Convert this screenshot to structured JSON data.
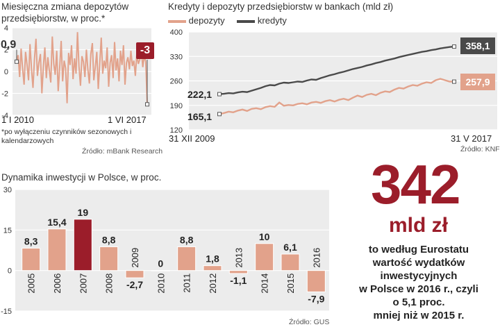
{
  "colors": {
    "accent": "#9b1d2a",
    "salmon": "#e2a28b",
    "salmon_light": "#ecc3b0",
    "dark": "#4a4a4a",
    "panel_bg": "#ececec"
  },
  "panel1": {
    "title": "Miesięczna zmiana depozytów przedsiębiorstw, w proc.*",
    "footnote": "*po wyłączeniu czynników sezonowych i kalendarzowych",
    "source": "Źródło: mBank Research",
    "start_value_label": "0,9",
    "end_value_label": "-3",
    "x_start_label": "1 I 2010",
    "x_end_label": "1 VI 2017"
  },
  "panel2": {
    "title": "Kredyty i depozyty przedsiębiorstw w bankach (mld zł)",
    "source": "Źródło: KNF",
    "x_start_label": "31 XII 2009",
    "x_end_label": "31 V 2017",
    "labels": {
      "kredyty_start": "222,1",
      "depozyty_start": "165,1",
      "kredyty_end": "358,1",
      "depozyty_end": "257,9"
    }
  },
  "panel3": {
    "title": "Dynamika inwestycji w Polsce, w proc.",
    "source": "Źródło: GUS"
  },
  "callout": {
    "number": "342",
    "unit": "mld zł",
    "text_lines": [
      "to według Eurostatu",
      "wartość wydatków",
      "inwestycyjnych",
      "w Polsce w 2016 r., czyli",
      "o 5,1 proc.",
      "mniej niż w 2015 r."
    ]
  },
  "chart_data": [
    {
      "type": "line",
      "yticks": [
        "4",
        "2",
        "0",
        "-2",
        "-4"
      ],
      "ylim": [
        -4,
        4
      ],
      "series": [
        {
          "values": [
            0.9,
            1.5,
            -0.5,
            2.1,
            0.3,
            -1.2,
            1.8,
            0.6,
            -0.8,
            2.5,
            0.2,
            -1.5,
            1.1,
            3.0,
            -0.4,
            0.8,
            1.6,
            -2.0,
            0.5,
            2.2,
            -0.6,
            1.3,
            0.1,
            -1.0,
            3.2,
            0.7,
            -0.3,
            1.9,
            -1.8,
            0.4,
            2.8,
            -0.9,
            1.0,
            0.3,
            -2.9,
            1.7,
            0.6,
            2.4,
            -0.7,
            1.2,
            -0.2,
            3.6,
            0.5,
            -1.3,
            1.4,
            0.9,
            -0.5,
            2.0,
            0.2,
            -1.1,
            1.6,
            2.6,
            -0.8,
            0.4,
            1.8,
            -1.6,
            0.7,
            3.1,
            -0.2,
            1.0,
            0.3,
            2.2,
            -1.4,
            0.8,
            1.5,
            -0.6,
            2.7,
            0.1,
            1.2,
            -0.9,
            1.9,
            0.6,
            2.4,
            -1.2,
            0.8,
            1.3,
            0.2,
            1.9,
            0.5,
            1.0,
            -0.4,
            1.6,
            0.7,
            1.1,
            2.0,
            0.4,
            1.4,
            0.9,
            -3.0
          ]
        }
      ]
    },
    {
      "type": "line",
      "yticks": [
        "400",
        "330",
        "260",
        "190",
        "120"
      ],
      "ylim": [
        120,
        400
      ],
      "series": [
        {
          "name": "depozyty",
          "values": [
            165.1,
            168,
            172,
            170,
            175,
            178,
            174,
            180,
            182,
            179,
            185,
            188,
            186,
            198,
            189,
            191,
            190,
            194,
            196,
            193,
            198,
            200,
            197,
            202,
            205,
            201,
            206,
            209,
            205,
            212,
            218,
            214,
            220,
            223,
            219,
            226,
            230,
            228,
            235,
            240,
            238,
            244,
            248,
            246,
            252,
            256,
            254,
            262,
            266,
            262,
            258,
            257.9
          ]
        },
        {
          "name": "kredyty",
          "values": [
            222.1,
            223,
            225,
            224,
            227,
            229,
            228,
            232,
            236,
            240,
            245,
            248,
            247,
            252,
            255,
            254,
            256,
            258,
            257,
            261,
            264,
            263,
            268,
            272,
            276,
            279,
            283,
            286,
            290,
            294,
            297,
            300,
            304,
            307,
            311,
            314,
            318,
            321,
            324,
            328,
            331,
            334,
            337,
            340,
            343,
            345,
            348,
            350,
            353,
            355,
            357,
            358.1
          ]
        }
      ]
    },
    {
      "type": "bar",
      "categories": [
        "2005",
        "2006",
        "2007",
        "2008",
        "2009",
        "2010",
        "2011",
        "2012",
        "2013",
        "2014",
        "2015",
        "2016"
      ],
      "values": [
        8.3,
        15.4,
        19,
        8.8,
        -2.7,
        0,
        8.8,
        1.8,
        -1.1,
        10,
        6.1,
        -7.9
      ],
      "value_labels": [
        "8,3",
        "15,4",
        "19",
        "8,8",
        "-2,7",
        "0",
        "8,8",
        "1,8",
        "-1,1",
        "10",
        "6,1",
        "-7,9"
      ],
      "highlight_index": 2,
      "yticks": [
        "30",
        "15",
        "0",
        "-15"
      ],
      "ylim": [
        -15,
        30
      ]
    }
  ]
}
